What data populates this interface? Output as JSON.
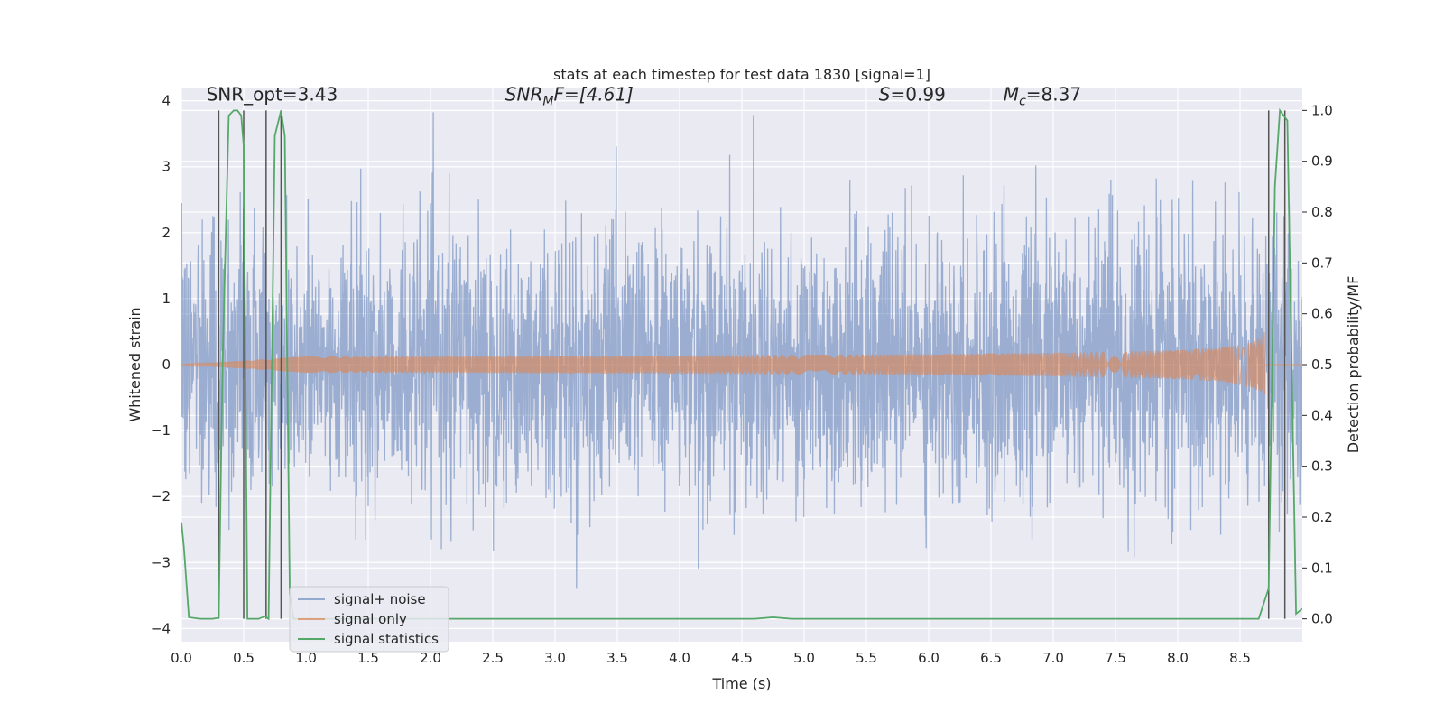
{
  "chart_data": {
    "type": "line",
    "title": "stats at each timestep for test data 1830 [signal=1]",
    "xlabel": "Time (s)",
    "ylabel_left": "Whitened strain",
    "ylabel_right": "Detection probability/MF",
    "xlim": [
      0.0,
      9.0
    ],
    "ylim_left": [
      -4.2,
      4.2
    ],
    "ylim_right": [
      -0.045,
      1.045
    ],
    "xticks": [
      "0.0",
      "0.5",
      "1.0",
      "1.5",
      "2.0",
      "2.5",
      "3.0",
      "3.5",
      "4.0",
      "4.5",
      "5.0",
      "5.5",
      "6.0",
      "6.5",
      "7.0",
      "7.5",
      "8.0",
      "8.5"
    ],
    "yticks_left": [
      "4",
      "3",
      "2",
      "1",
      "0",
      "−1",
      "−2",
      "−3",
      "−4"
    ],
    "yticks_right": [
      "1.0",
      "0.9",
      "0.8",
      "0.7",
      "0.6",
      "0.5",
      "0.4",
      "0.3",
      "0.2",
      "0.1",
      "0.0"
    ],
    "annotations": [
      {
        "text": "SNR_opt=3.43",
        "x": 0.2,
        "y": 4.0
      },
      {
        "text": "SNR",
        "sub": "M",
        "tail": "F=[4.61]",
        "x": 2.6,
        "y": 4.0
      },
      {
        "text": "S",
        "tail": "=0.99",
        "x": 5.6,
        "y": 4.0
      },
      {
        "text": "M",
        "sub": "c",
        "tail": "=8.37",
        "x": 6.6,
        "y": 4.0
      }
    ],
    "legend": {
      "placement": "lower-left",
      "entries": [
        "signal+ noise",
        "signal only",
        "signal statistics"
      ]
    },
    "colors": {
      "signal_noise": "#4c72b0",
      "signal_only": "#dd8452",
      "statistics": "#55a868",
      "vlines": "#555555",
      "background": "#eaeaf2"
    },
    "grid": true,
    "series": [
      {
        "name": "signal+ noise",
        "axis": "left",
        "description_note": "",
        "noise_sigma": 1.0,
        "noise_peak_max": 4.0,
        "noise_peak_min": -3.8
      },
      {
        "name": "signal only",
        "axis": "left",
        "chirp_end_time": 8.7,
        "chirp_peak_amplitude": 0.55
      },
      {
        "name": "signal statistics",
        "axis": "right",
        "x": [
          0.0,
          0.02,
          0.06,
          0.15,
          0.25,
          0.3,
          0.33,
          0.38,
          0.42,
          0.45,
          0.48,
          0.5,
          0.53,
          0.57,
          0.62,
          0.67,
          0.7,
          0.75,
          0.8,
          0.83,
          0.87,
          0.9,
          1.0,
          2.0,
          3.0,
          4.0,
          4.6,
          4.75,
          4.9,
          6.0,
          7.0,
          8.0,
          8.5,
          8.65,
          8.73,
          8.78,
          8.82,
          8.88,
          8.95,
          9.0
        ],
        "y": [
          0.19,
          0.14,
          0.003,
          0.0,
          0.0,
          0.002,
          0.5,
          0.99,
          1.0,
          1.0,
          0.99,
          0.93,
          0.0,
          0.0,
          0.0,
          0.005,
          0.0,
          0.95,
          1.0,
          0.95,
          0.05,
          0.0,
          0.0,
          0.0,
          0.0,
          0.0,
          0.0,
          0.003,
          0.0,
          0.0,
          0.0,
          0.0,
          0.0,
          0.0,
          0.06,
          0.85,
          1.0,
          0.98,
          0.01,
          0.02
        ]
      }
    ],
    "vlines": [
      0.3,
      0.5,
      0.68,
      0.8,
      8.73,
      8.86
    ]
  }
}
